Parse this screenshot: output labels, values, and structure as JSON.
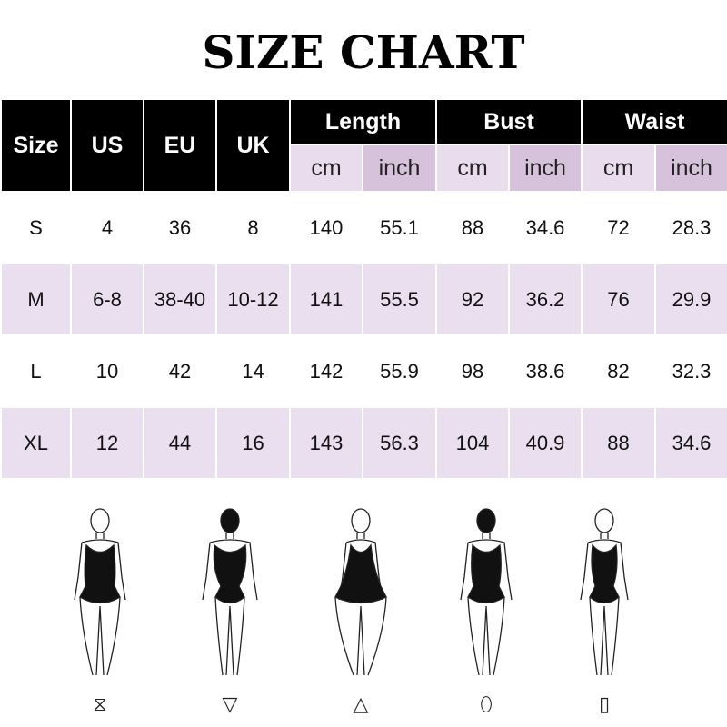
{
  "title": "SIZE CHART",
  "headers": {
    "size": "Size",
    "us": "US",
    "eu": "EU",
    "uk": "UK",
    "length": "Length",
    "bust": "Bust",
    "waist": "Waist",
    "cm": "cm",
    "inch": "inch"
  },
  "rows": [
    [
      "S",
      "4",
      "36",
      "8",
      "140",
      "55.1",
      "88",
      "34.6",
      "72",
      "28.3"
    ],
    [
      "M",
      "6-8",
      "38-40",
      "10-12",
      "141",
      "55.5",
      "92",
      "36.2",
      "76",
      "29.9"
    ],
    [
      "L",
      "10",
      "42",
      "14",
      "142",
      "55.9",
      "98",
      "38.6",
      "82",
      "32.3"
    ],
    [
      "XL",
      "12",
      "44",
      "16",
      "143",
      "56.3",
      "104",
      "40.9",
      "88",
      "34.6"
    ]
  ],
  "body_shapes": [
    "hourglass",
    "inverted-triangle",
    "triangle",
    "oval",
    "rectangle"
  ],
  "colors": {
    "header": "#000000",
    "subheader_cm": "#e9dcec",
    "subheader_inch": "#d7c2dc",
    "alt_row": "#eadfee"
  }
}
